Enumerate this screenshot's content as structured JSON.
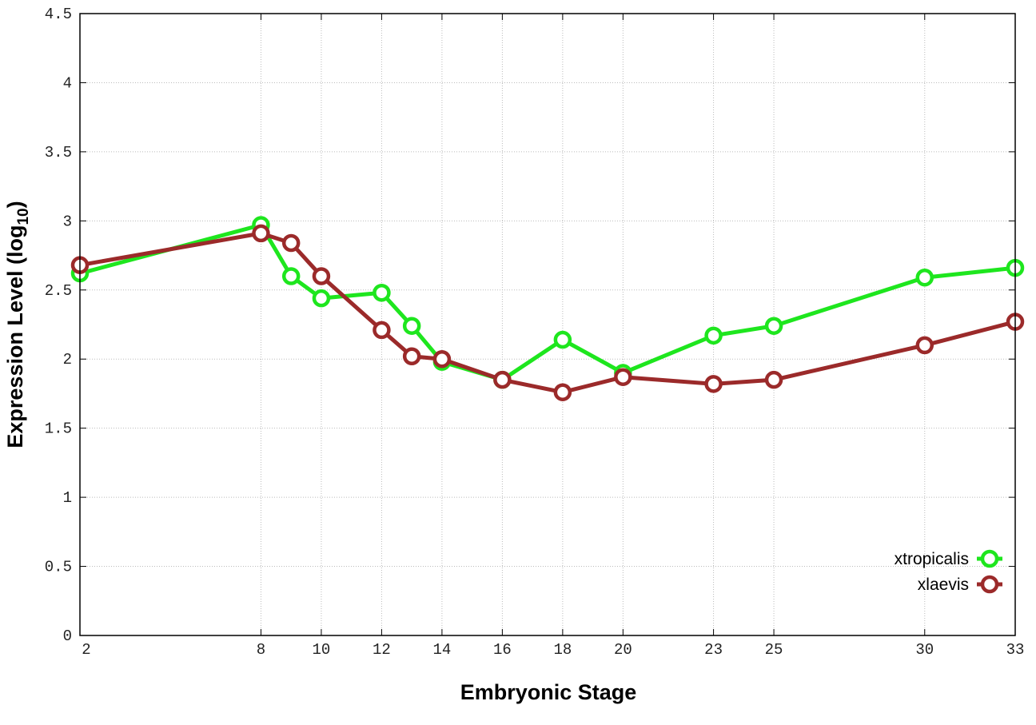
{
  "chart_data": {
    "type": "line",
    "xlabel": "Embryonic Stage",
    "ylabel": "Expression Level (log",
    "ylabel_subscript": "10",
    "ylabel_suffix": ")",
    "xlim": [
      2,
      33
    ],
    "ylim": [
      0,
      4.5
    ],
    "x_ticks": [
      2,
      8,
      10,
      12,
      14,
      16,
      18,
      20,
      23,
      25,
      30,
      33
    ],
    "y_ticks": [
      "0",
      "0.5",
      "1",
      "1.5",
      "2",
      "2.5",
      "3",
      "3.5",
      "4",
      "4.5"
    ],
    "grid": true,
    "legend_position": "bottom-right",
    "x": [
      2,
      8,
      9,
      10,
      12,
      13,
      14,
      16,
      18,
      20,
      23,
      25,
      30,
      33
    ],
    "series": [
      {
        "name": "xtropicalis",
        "color": "#1ee61e",
        "values": [
          2.62,
          2.97,
          2.6,
          2.44,
          2.48,
          2.24,
          1.98,
          1.85,
          2.14,
          1.9,
          2.17,
          2.24,
          2.59,
          2.66
        ]
      },
      {
        "name": "xlaevis",
        "color": "#9b2a2a",
        "values": [
          2.68,
          2.91,
          2.84,
          2.6,
          2.21,
          2.02,
          2.0,
          1.85,
          1.76,
          1.87,
          1.82,
          1.85,
          2.1,
          2.27
        ]
      }
    ]
  }
}
